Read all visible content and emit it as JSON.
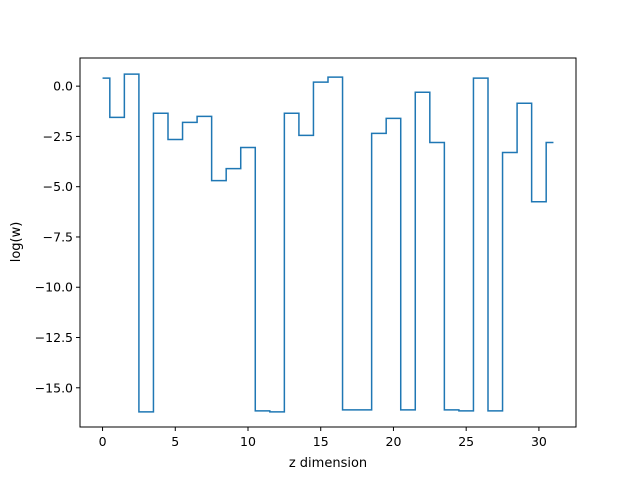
{
  "chart_data": {
    "type": "line",
    "drawstyle": "steps-mid",
    "xlabel": "z dimension",
    "ylabel": "log(w)",
    "xlim": [
      -1.55,
      32.55
    ],
    "ylim": [
      -16.95,
      1.4
    ],
    "grid": false,
    "x_ticks": [
      0,
      5,
      10,
      15,
      20,
      25,
      30
    ],
    "x_tick_labels": [
      "0",
      "5",
      "10",
      "15",
      "20",
      "25",
      "30"
    ],
    "y_ticks": [
      0.0,
      -2.5,
      -5.0,
      -7.5,
      -10.0,
      -12.5,
      -15.0
    ],
    "y_tick_labels": [
      "0.0",
      "−2.5",
      "−5.0",
      "−7.5",
      "−10.0",
      "−12.5",
      "−15.0"
    ],
    "series": [
      {
        "color": "#1f77b4",
        "x": [
          0,
          1,
          2,
          3,
          4,
          5,
          6,
          7,
          8,
          9,
          10,
          11,
          12,
          13,
          14,
          15,
          16,
          17,
          18,
          19,
          20,
          21,
          22,
          23,
          24,
          25,
          26,
          27,
          28,
          29,
          30,
          31
        ],
        "values": [
          0.4,
          -1.55,
          0.6,
          -16.2,
          -1.35,
          -2.65,
          -1.8,
          -1.5,
          -4.7,
          -4.1,
          -3.05,
          -16.15,
          -16.2,
          -1.35,
          -2.45,
          0.2,
          0.45,
          -16.1,
          -16.1,
          -2.35,
          -1.6,
          -16.1,
          -0.3,
          -2.8,
          -16.1,
          -16.15,
          0.4,
          -16.15,
          -3.3,
          -0.85,
          -5.75,
          -2.8
        ]
      }
    ]
  }
}
